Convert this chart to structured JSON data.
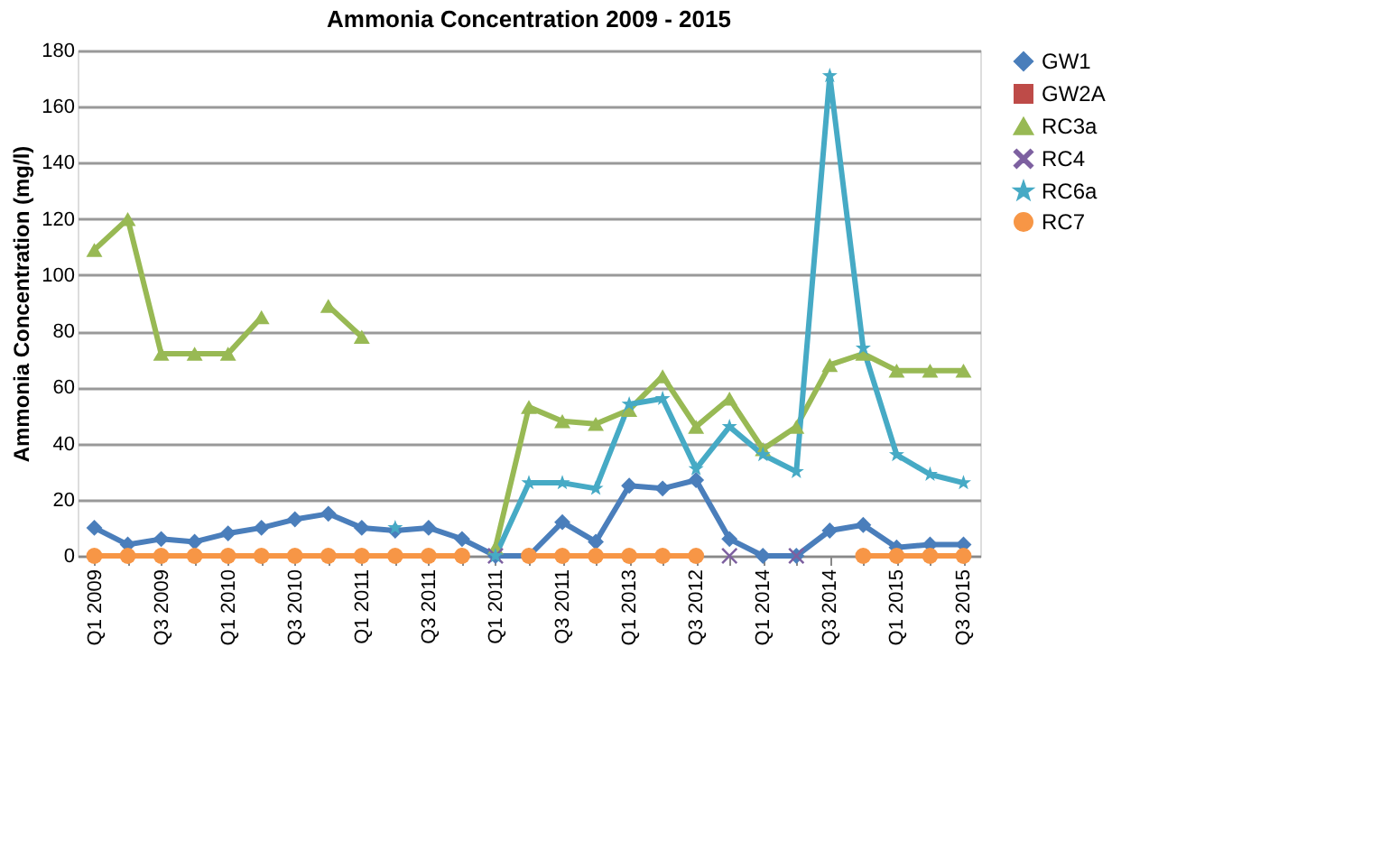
{
  "chart_data": {
    "type": "line",
    "title": "Ammonia Concentration 2009 - 2015",
    "ylabel": "Ammonia Concentration (mg/l)",
    "categories": [
      "Q1 2009",
      null,
      "Q3 2009",
      null,
      "Q1 2010",
      null,
      "Q3 2010",
      null,
      "Q1 2011",
      null,
      "Q3 2011",
      null,
      "Q1 2011",
      null,
      "Q3 2011",
      null,
      "Q1 2013",
      null,
      "Q3 2012",
      null,
      "Q1 2014",
      null,
      "Q3 2014",
      null,
      "Q1 2015",
      null,
      "Q3 2015"
    ],
    "series": [
      {
        "name": "GW1",
        "color": "#4a7ebb",
        "marker": "diamond",
        "values": [
          10,
          4,
          6,
          5,
          8,
          10,
          13,
          15,
          10,
          9,
          10,
          6,
          0,
          0,
          12,
          5,
          25,
          24,
          27,
          6,
          0,
          0,
          9,
          11,
          3,
          4,
          4
        ]
      },
      {
        "name": "GW2A",
        "color": "#be4b48",
        "marker": "square",
        "values": [
          null,
          null,
          null,
          null,
          null,
          null,
          null,
          null,
          null,
          null,
          null,
          null,
          null,
          null,
          null,
          null,
          null,
          null,
          null,
          null,
          null,
          null,
          null,
          null,
          null,
          null,
          null
        ]
      },
      {
        "name": "RC3a",
        "color": "#98b954",
        "marker": "triangle",
        "values": [
          109,
          120,
          72,
          72,
          72,
          85,
          null,
          89,
          78,
          null,
          null,
          null,
          3,
          53,
          48,
          47,
          52,
          64,
          46,
          56,
          38,
          46,
          68,
          72,
          66,
          66,
          66
        ]
      },
      {
        "name": "RC4",
        "color": "#7d60a0",
        "marker": "cross",
        "values": [
          null,
          null,
          null,
          null,
          null,
          null,
          null,
          null,
          null,
          null,
          null,
          null,
          0,
          null,
          null,
          null,
          null,
          null,
          null,
          0,
          null,
          0,
          null,
          null,
          null,
          null,
          null
        ]
      },
      {
        "name": "RC6a",
        "color": "#46aac5",
        "marker": "star",
        "values": [
          null,
          null,
          null,
          null,
          null,
          null,
          null,
          null,
          null,
          10,
          null,
          null,
          0,
          26,
          26,
          24,
          54,
          56,
          31,
          46,
          36,
          30,
          171,
          74,
          36,
          29,
          26
        ]
      },
      {
        "name": "RC7",
        "color": "#f79646",
        "marker": "circle",
        "values": [
          0,
          0,
          0,
          0,
          0,
          0,
          0,
          0,
          0,
          0,
          0,
          0,
          null,
          0,
          0,
          0,
          0,
          0,
          0,
          null,
          null,
          null,
          null,
          0,
          0,
          0,
          0
        ]
      }
    ],
    "ylim": [
      0,
      180
    ],
    "yticks": [
      0,
      20,
      40,
      60,
      80,
      100,
      120,
      140,
      160,
      180
    ],
    "grid": "y",
    "legend": "right"
  }
}
